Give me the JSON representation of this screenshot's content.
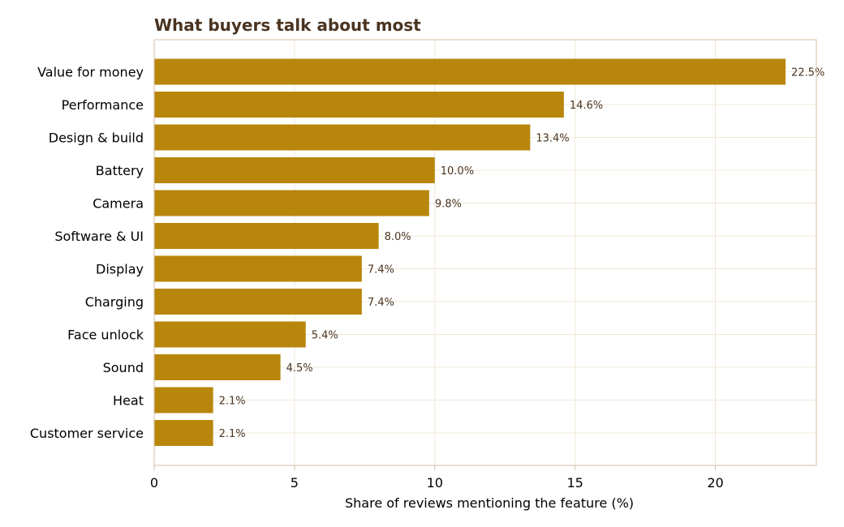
{
  "chart_data": {
    "type": "bar",
    "orientation": "horizontal",
    "title": "What buyers talk about most",
    "xlabel": "Share of reviews mentioning the feature (%)",
    "ylabel": "",
    "categories": [
      "Value for money",
      "Performance",
      "Design & build",
      "Battery",
      "Camera",
      "Software & UI",
      "Display",
      "Charging",
      "Face unlock",
      "Sound",
      "Heat",
      "Customer service"
    ],
    "values": [
      22.5,
      14.6,
      13.4,
      10.0,
      9.8,
      8.0,
      7.4,
      7.4,
      5.4,
      4.5,
      2.1,
      2.1
    ],
    "value_labels": [
      "22.5%",
      "14.6%",
      "13.4%",
      "10.0%",
      "9.8%",
      "8.0%",
      "7.4%",
      "7.4%",
      "5.4%",
      "4.5%",
      "2.1%",
      "2.1%"
    ],
    "xlim": [
      0,
      23.6
    ],
    "xticks": [
      0,
      5,
      10,
      15,
      20
    ],
    "grid": true,
    "legend": "none",
    "colors": {
      "bar": "#b8860b",
      "title": "#4a3421",
      "value_label": "#4a3421",
      "grid": "#f0e8d8",
      "frame": "#d4bfa8"
    }
  }
}
